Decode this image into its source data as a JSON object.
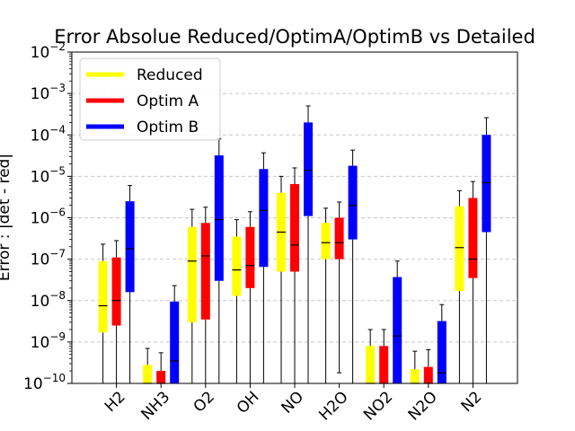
{
  "chart_data": {
    "type": "box",
    "title": "Error Absolue Reduced/OptimA/OptimB vs Detailed",
    "ylabel": "Error : |det - red|",
    "xlabel": "",
    "yscale": "log",
    "ylim_exp": [
      -10,
      -2
    ],
    "ylim": [
      1e-10,
      0.01
    ],
    "grid": "y-dashed",
    "legend_position": "top-left",
    "categories": [
      "H2",
      "NH3",
      "O2",
      "OH",
      "NO",
      "H2O",
      "NO2",
      "N2O",
      "N2"
    ],
    "series": [
      {
        "name": "Reduced",
        "color": "#ffff00",
        "boxes": [
          {
            "whislo": 1e-10,
            "q1": 1.7e-09,
            "med": 7.5e-09,
            "q3": 9e-08,
            "whishi": 2.3e-07
          },
          {
            "whislo": 1e-10,
            "q1": 1e-10,
            "med": 1e-10,
            "q3": 2.8e-10,
            "whishi": 7e-10
          },
          {
            "whislo": 1e-10,
            "q1": 3e-09,
            "med": 9e-08,
            "q3": 6e-07,
            "whishi": 1.6e-06
          },
          {
            "whislo": 1e-10,
            "q1": 1.3e-08,
            "med": 5.5e-08,
            "q3": 3.5e-07,
            "whishi": 9e-07
          },
          {
            "whislo": 1e-10,
            "q1": 5e-08,
            "med": 4.5e-07,
            "q3": 4e-06,
            "whishi": 1e-05
          },
          {
            "whislo": 1e-10,
            "q1": 1e-07,
            "med": 2.5e-07,
            "q3": 7.5e-07,
            "whishi": 1.7e-06
          },
          {
            "whislo": 1e-10,
            "q1": 1e-10,
            "med": 1e-10,
            "q3": 8e-10,
            "whishi": 2e-09
          },
          {
            "whislo": 1e-10,
            "q1": 1e-10,
            "med": 1e-10,
            "q3": 2.2e-10,
            "whishi": 6e-10
          },
          {
            "whislo": 1e-10,
            "q1": 1.7e-08,
            "med": 1.9e-07,
            "q3": 1.9e-06,
            "whishi": 4.5e-06
          }
        ]
      },
      {
        "name": "Optim A",
        "color": "#ff0000",
        "boxes": [
          {
            "whislo": 1e-10,
            "q1": 2.5e-09,
            "med": 1e-08,
            "q3": 1.1e-07,
            "whishi": 2.8e-07
          },
          {
            "whislo": 1e-10,
            "q1": 1e-10,
            "med": 1e-10,
            "q3": 2e-10,
            "whishi": 5.5e-10
          },
          {
            "whislo": 1e-10,
            "q1": 3.5e-09,
            "med": 1.2e-07,
            "q3": 7.5e-07,
            "whishi": 1.8e-06
          },
          {
            "whislo": 1e-10,
            "q1": 2e-08,
            "med": 7e-08,
            "q3": 6e-07,
            "whishi": 1.4e-06
          },
          {
            "whislo": 1e-10,
            "q1": 5e-08,
            "med": 2.2e-07,
            "q3": 6.5e-06,
            "whishi": 1.6e-05
          },
          {
            "whislo": 1.8e-10,
            "q1": 1e-07,
            "med": 2.5e-07,
            "q3": 1e-06,
            "whishi": 2.4e-06
          },
          {
            "whislo": 1e-10,
            "q1": 1e-10,
            "med": 1e-10,
            "q3": 8e-10,
            "whishi": 2e-09
          },
          {
            "whislo": 1e-10,
            "q1": 1e-10,
            "med": 1e-10,
            "q3": 2.5e-10,
            "whishi": 6.5e-10
          },
          {
            "whislo": 1e-10,
            "q1": 3.5e-08,
            "med": 1e-07,
            "q3": 3e-06,
            "whishi": 7.5e-06
          }
        ]
      },
      {
        "name": "Optim B",
        "color": "#0000ff",
        "boxes": [
          {
            "whislo": 1e-10,
            "q1": 1.6e-08,
            "med": 1.8e-07,
            "q3": 2.5e-06,
            "whishi": 6e-06
          },
          {
            "whislo": 1e-10,
            "q1": 1e-10,
            "med": 3.5e-10,
            "q3": 9.5e-09,
            "whishi": 2.3e-08
          },
          {
            "whislo": 1e-10,
            "q1": 3e-08,
            "med": 9e-07,
            "q3": 3.2e-05,
            "whishi": 8e-05
          },
          {
            "whislo": 1e-10,
            "q1": 6.5e-08,
            "med": 1.5e-06,
            "q3": 1.5e-05,
            "whishi": 3.7e-05
          },
          {
            "whislo": 1e-10,
            "q1": 1.1e-06,
            "med": 1.4e-05,
            "q3": 0.0002,
            "whishi": 0.0005
          },
          {
            "whislo": 1e-10,
            "q1": 3e-07,
            "med": 2e-06,
            "q3": 1.8e-05,
            "whishi": 4.3e-05
          },
          {
            "whislo": 1e-10,
            "q1": 1e-10,
            "med": 1.4e-09,
            "q3": 3.7e-08,
            "whishi": 9e-08
          },
          {
            "whislo": 1e-10,
            "q1": 1e-10,
            "med": 1.8e-10,
            "q3": 3.2e-09,
            "whishi": 8e-09
          },
          {
            "whislo": 1e-10,
            "q1": 4.5e-07,
            "med": 7e-06,
            "q3": 0.0001,
            "whishi": 0.00026
          }
        ]
      }
    ]
  }
}
